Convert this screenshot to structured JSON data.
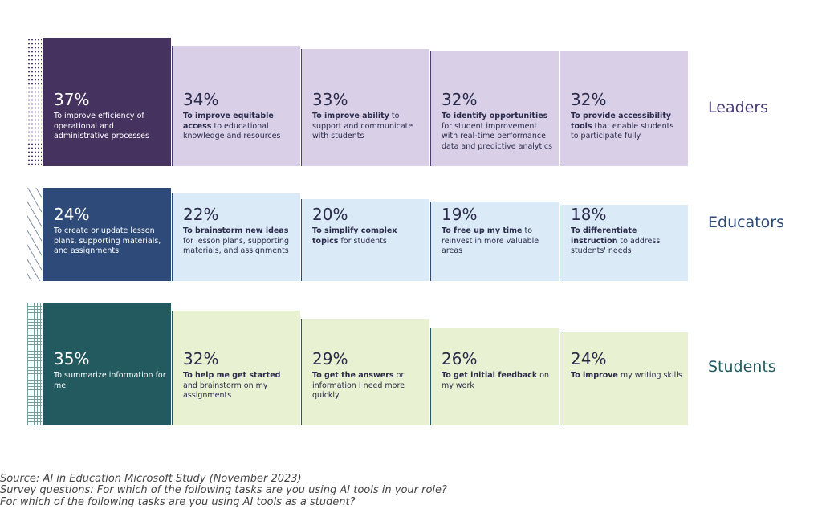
{
  "chart_data": [
    {
      "type": "bar",
      "title": "Leaders",
      "ylim": [
        -10,
        40
      ],
      "colors": [
        "#46325f",
        "#d9d0e8"
      ],
      "accent": "#4a3b73",
      "pattern": "dots",
      "values": [
        37,
        34,
        33,
        32,
        32
      ],
      "value_labels": [
        "37%",
        "34%",
        "33%",
        "32%",
        "32%"
      ],
      "categories": [
        {
          "text": "To improve efficiency of operational and administrative processes"
        },
        {
          "strong": "To improve equitable access",
          "text": "to educational knowledge and resources"
        },
        {
          "strong": "To improve ability",
          "text": "to support and communicate with students"
        },
        {
          "strong": "To identify opportunities",
          "text": "for student improvement with real-time performance data and predictive analytics"
        },
        {
          "strong": "To provide accessibility tools",
          "text": "that enable students to participate fully"
        }
      ]
    },
    {
      "type": "bar",
      "title": "Educators",
      "ylim": [
        -10,
        40
      ],
      "colors": [
        "#2d4a78",
        "#daeaf7"
      ],
      "accent": "#2d4a78",
      "pattern": "dashes",
      "values": [
        24,
        22,
        20,
        19,
        18
      ],
      "value_labels": [
        "24%",
        "22%",
        "20%",
        "19%",
        "18%"
      ],
      "categories": [
        {
          "text": "To create or update lesson plans, supporting materials, and assignments"
        },
        {
          "strong": "To brainstorm new ideas",
          "text": "for lesson plans, supporting materials, and assignments"
        },
        {
          "strong": "To simplify complex topics",
          "text": "for students"
        },
        {
          "strong": "To free up my time",
          "text": "to reinvest in more valuable areas"
        },
        {
          "strong": "To differentiate instruction",
          "text": "to address students' needs"
        }
      ]
    },
    {
      "type": "bar",
      "title": "Students",
      "ylim": [
        -10,
        40
      ],
      "colors": [
        "#235a60",
        "#e8f2d2"
      ],
      "accent": "#235a60",
      "pattern": "grid",
      "values": [
        35,
        32,
        29,
        26,
        24
      ],
      "value_labels": [
        "35%",
        "32%",
        "29%",
        "26%",
        "24%"
      ],
      "categories": [
        {
          "text": "To summarize information for me"
        },
        {
          "strong": "To help me get started",
          "text": "and brainstorm on my assignments"
        },
        {
          "strong": "To get the answers",
          "text": "or information I need more quickly"
        },
        {
          "strong": "To get initial feedback",
          "text": "on my work"
        },
        {
          "strong": "To improve",
          "text": "my writing skills"
        }
      ]
    }
  ],
  "notes": [
    "Source: AI in Education Microsoft Study (November 2023)",
    "Survey questions: For which of the following tasks are you using AI tools in your role?",
    "For which of the following tasks are you using AI tools as a student?"
  ]
}
